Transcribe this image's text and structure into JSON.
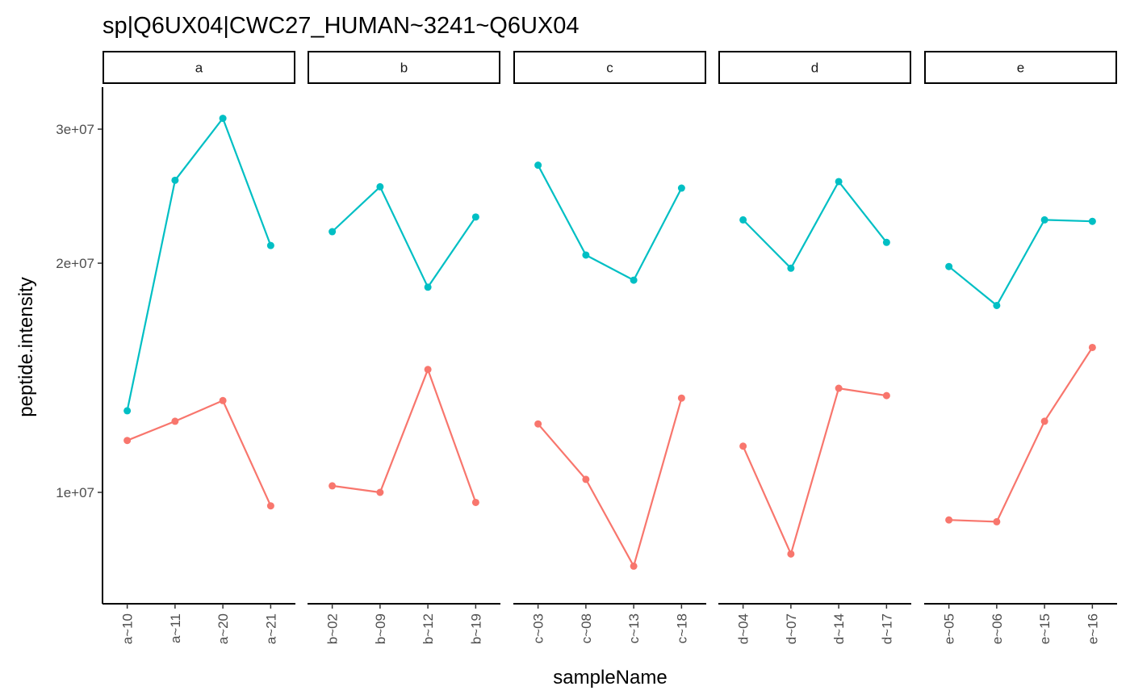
{
  "chart_data": {
    "type": "line",
    "title": "sp|Q6UX04|CWC27_HUMAN~3241~Q6UX04",
    "xlabel": "sampleName",
    "ylabel": "peptide.intensity",
    "y_scale": "log10",
    "ylim": [
      7400000,
      33500000
    ],
    "y_ticks": [
      10000000,
      20000000,
      30000000
    ],
    "y_tick_labels": [
      "1e+07",
      "2e+07",
      "3e+07"
    ],
    "grid": false,
    "legend": "none",
    "series_colors": [
      "#00BFC4",
      "#F8766D"
    ],
    "facets": [
      {
        "label": "a",
        "categories": [
          "a~10",
          "a~11",
          "a~20",
          "a~21"
        ],
        "series": [
          {
            "values": [
              12800000,
              25700000,
              31000000,
              21100000
            ]
          },
          {
            "values": [
              11700000,
              12400000,
              13200000,
              9600000
            ]
          }
        ]
      },
      {
        "label": "b",
        "categories": [
          "b~02",
          "b~09",
          "b~12",
          "b~19"
        ],
        "series": [
          {
            "values": [
              22000000,
              25200000,
              18600000,
              23000000
            ]
          },
          {
            "values": [
              10200000,
              10000000,
              14500000,
              9700000
            ]
          }
        ]
      },
      {
        "label": "c",
        "categories": [
          "c~03",
          "c~08",
          "c~13",
          "c~18"
        ],
        "series": [
          {
            "values": [
              26900000,
              20500000,
              19000000,
              25100000
            ]
          },
          {
            "values": [
              12300000,
              10400000,
              8000000,
              13300000
            ]
          }
        ]
      },
      {
        "label": "d",
        "categories": [
          "d~04",
          "d~07",
          "d~14",
          "d~17"
        ],
        "series": [
          {
            "values": [
              22800000,
              19700000,
              25600000,
              21300000
            ]
          },
          {
            "values": [
              11500000,
              8300000,
              13700000,
              13400000
            ]
          }
        ]
      },
      {
        "label": "e",
        "categories": [
          "e~05",
          "e~06",
          "e~15",
          "e~16"
        ],
        "series": [
          {
            "values": [
              19800000,
              17600000,
              22800000,
              22700000
            ]
          },
          {
            "values": [
              9200000,
              9150000,
              12400000,
              15500000
            ]
          }
        ]
      }
    ]
  }
}
